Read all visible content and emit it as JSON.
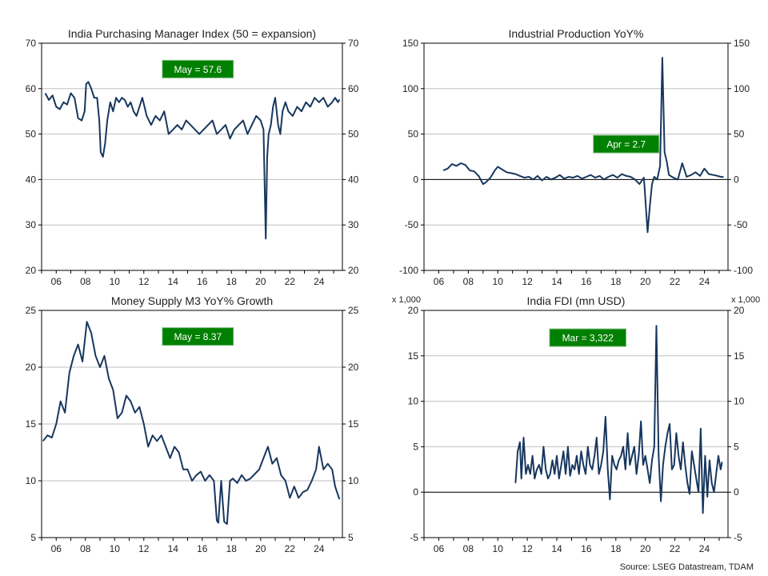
{
  "source": "Source: LSEG Datastream, TDAM",
  "colors": {
    "line": "#17375e",
    "callout_bg": "#008000",
    "callout_text": "#ffffff",
    "grid": "#bfbfbf",
    "axis": "#000000"
  },
  "chart_data": [
    {
      "type": "line",
      "title": "India Purchasing Manager Index (50 = expansion)",
      "ylim": [
        20,
        70
      ],
      "yticks": [
        20,
        30,
        40,
        50,
        60,
        70
      ],
      "ytick_labels": [
        "20",
        "30",
        "40",
        "50",
        "60",
        "70"
      ],
      "xlim": [
        2005,
        2025.6
      ],
      "xticks": [
        2006,
        2008,
        2010,
        2012,
        2014,
        2016,
        2018,
        2020,
        2022,
        2024
      ],
      "xtick_labels": [
        "06",
        "08",
        "10",
        "12",
        "14",
        "16",
        "18",
        "20",
        "22",
        "24"
      ],
      "zero_line": false,
      "multiplier_label": "",
      "grid": true,
      "callout": {
        "text": "May  = 57.6",
        "x": 2015.7,
        "y": 64.3
      },
      "series": [
        {
          "x": [
            2005.25,
            2005.5,
            2005.75,
            2006.0,
            2006.25,
            2006.5,
            2006.75,
            2007.0,
            2007.25,
            2007.5,
            2007.75,
            2007.95,
            2008.05,
            2008.2,
            2008.4,
            2008.6,
            2008.8,
            2008.95,
            2009.05,
            2009.2,
            2009.35,
            2009.5,
            2009.7,
            2009.9,
            2010.1,
            2010.3,
            2010.5,
            2010.7,
            2010.9,
            2011.1,
            2011.3,
            2011.5,
            2011.7,
            2011.9,
            2012.2,
            2012.5,
            2012.8,
            2013.1,
            2013.4,
            2013.7,
            2014.0,
            2014.3,
            2014.6,
            2014.9,
            2015.2,
            2015.5,
            2015.8,
            2016.1,
            2016.4,
            2016.7,
            2017.0,
            2017.3,
            2017.6,
            2017.9,
            2018.2,
            2018.5,
            2018.8,
            2019.1,
            2019.4,
            2019.7,
            2020.0,
            2020.2,
            2020.35,
            2020.45,
            2020.55,
            2020.7,
            2020.85,
            2021.0,
            2021.2,
            2021.35,
            2021.5,
            2021.7,
            2021.9,
            2022.2,
            2022.5,
            2022.8,
            2023.1,
            2023.4,
            2023.7,
            2024.0,
            2024.3,
            2024.6,
            2024.9,
            2025.1,
            2025.3,
            2025.4
          ],
          "values": [
            59,
            57.5,
            58.5,
            56,
            55.5,
            57,
            56.5,
            59,
            58,
            53.5,
            53,
            55,
            61,
            61.5,
            60,
            58,
            58,
            53,
            46,
            45,
            48,
            53,
            57,
            55,
            58,
            57,
            58,
            57.5,
            56,
            57,
            55,
            54,
            56,
            58,
            54,
            52,
            54,
            53,
            55,
            50,
            51,
            52,
            51,
            53,
            52,
            51,
            50,
            51,
            52,
            53,
            50,
            51,
            52,
            49,
            51,
            52,
            53,
            50,
            52,
            54,
            53,
            51,
            27,
            45,
            50,
            52,
            56,
            58,
            52,
            50,
            55,
            57,
            55,
            54,
            56,
            55,
            57,
            56,
            58,
            57,
            58,
            56,
            57,
            58,
            57,
            57.6
          ]
        }
      ]
    },
    {
      "type": "line",
      "title": "Industrial Production YoY%",
      "ylim": [
        -100,
        150
      ],
      "yticks": [
        -100,
        -50,
        0,
        50,
        100,
        150
      ],
      "ytick_labels": [
        "-100",
        "-50",
        "0",
        "50",
        "100",
        "150"
      ],
      "xlim": [
        2005,
        2025.6
      ],
      "xticks": [
        2006,
        2008,
        2010,
        2012,
        2014,
        2016,
        2018,
        2020,
        2022,
        2024
      ],
      "xtick_labels": [
        "06",
        "08",
        "10",
        "12",
        "14",
        "16",
        "18",
        "20",
        "22",
        "24"
      ],
      "zero_line": true,
      "multiplier_label": "",
      "grid": true,
      "callout": {
        "text": "Apr  = 2.7",
        "x": 2018.7,
        "y": 39
      },
      "series": [
        {
          "x": [
            2006.3,
            2006.6,
            2006.9,
            2007.2,
            2007.5,
            2007.8,
            2008.1,
            2008.4,
            2008.7,
            2009.0,
            2009.2,
            2009.5,
            2009.8,
            2010.0,
            2010.3,
            2010.6,
            2010.9,
            2011.2,
            2011.5,
            2011.8,
            2012.1,
            2012.4,
            2012.7,
            2013.0,
            2013.3,
            2013.6,
            2013.9,
            2014.2,
            2014.5,
            2014.8,
            2015.1,
            2015.4,
            2015.7,
            2016.0,
            2016.3,
            2016.6,
            2016.9,
            2017.2,
            2017.5,
            2017.8,
            2018.1,
            2018.4,
            2018.7,
            2019.0,
            2019.3,
            2019.6,
            2019.9,
            2020.15,
            2020.3,
            2020.45,
            2020.6,
            2020.8,
            2021.0,
            2021.15,
            2021.3,
            2021.45,
            2021.6,
            2021.9,
            2022.2,
            2022.5,
            2022.8,
            2023.1,
            2023.4,
            2023.7,
            2024.0,
            2024.3,
            2024.6,
            2024.9,
            2025.1,
            2025.3
          ],
          "values": [
            10,
            12,
            17,
            15,
            18,
            16,
            10,
            9,
            4,
            -5,
            -3,
            2,
            10,
            14,
            11,
            8,
            7,
            6,
            4,
            2,
            3,
            0,
            4,
            -1,
            3,
            0,
            2,
            5,
            1,
            3,
            2,
            4,
            1,
            3,
            5,
            2,
            4,
            0,
            3,
            5,
            2,
            6,
            4,
            3,
            0,
            -5,
            2,
            -58,
            -30,
            -5,
            3,
            0,
            15,
            134,
            30,
            20,
            5,
            2,
            0,
            18,
            3,
            5,
            8,
            4,
            12,
            6,
            5,
            4,
            3,
            2.7
          ]
        }
      ]
    },
    {
      "type": "line",
      "title": "Money Supply M3 YoY% Growth",
      "ylim": [
        5,
        25
      ],
      "yticks": [
        5,
        10,
        15,
        20,
        25
      ],
      "ytick_labels": [
        "5",
        "10",
        "15",
        "20",
        "25"
      ],
      "xlim": [
        2005,
        2025.6
      ],
      "xticks": [
        2006,
        2008,
        2010,
        2012,
        2014,
        2016,
        2018,
        2020,
        2022,
        2024
      ],
      "xtick_labels": [
        "06",
        "08",
        "10",
        "12",
        "14",
        "16",
        "18",
        "20",
        "22",
        "24"
      ],
      "zero_line": false,
      "multiplier_label": "",
      "grid": true,
      "callout": {
        "text": "May  = 8.37",
        "x": 2015.7,
        "y": 22.7
      },
      "series": [
        {
          "x": [
            2005.1,
            2005.4,
            2005.7,
            2006.0,
            2006.3,
            2006.6,
            2006.9,
            2007.2,
            2007.5,
            2007.8,
            2008.1,
            2008.4,
            2008.7,
            2009.0,
            2009.3,
            2009.6,
            2009.9,
            2010.2,
            2010.5,
            2010.8,
            2011.1,
            2011.4,
            2011.7,
            2012.0,
            2012.3,
            2012.6,
            2012.9,
            2013.2,
            2013.5,
            2013.8,
            2014.1,
            2014.4,
            2014.7,
            2015.0,
            2015.3,
            2015.6,
            2015.9,
            2016.2,
            2016.5,
            2016.8,
            2017.0,
            2017.1,
            2017.3,
            2017.5,
            2017.7,
            2017.9,
            2018.1,
            2018.4,
            2018.7,
            2019.0,
            2019.3,
            2019.6,
            2019.9,
            2020.2,
            2020.5,
            2020.8,
            2021.1,
            2021.4,
            2021.7,
            2022.0,
            2022.3,
            2022.6,
            2022.9,
            2023.2,
            2023.5,
            2023.8,
            2024.0,
            2024.3,
            2024.6,
            2024.9,
            2025.1,
            2025.4
          ],
          "values": [
            13.5,
            14,
            13.8,
            15,
            17,
            16,
            19.5,
            21,
            22,
            20.5,
            24,
            23,
            21,
            20,
            21,
            19,
            18,
            15.5,
            16,
            17.5,
            17,
            16,
            16.5,
            15,
            13,
            14,
            13.5,
            14,
            13,
            12,
            13,
            12.5,
            11,
            11,
            10,
            10.5,
            10.8,
            10,
            10.5,
            10,
            6.5,
            6.3,
            10,
            6.4,
            6.2,
            10,
            10.2,
            9.8,
            10.5,
            10,
            10.2,
            10.6,
            11,
            12,
            13,
            11.5,
            12,
            10.5,
            10,
            8.5,
            9.5,
            8.5,
            9,
            9.2,
            10,
            11,
            13,
            11,
            11.5,
            11,
            9.5,
            8.37
          ]
        }
      ]
    },
    {
      "type": "line",
      "title": "India FDI (mn USD)",
      "ylim": [
        -5,
        20
      ],
      "yticks": [
        -5,
        0,
        5,
        10,
        15,
        20
      ],
      "ytick_labels": [
        "-5",
        "0",
        "5",
        "10",
        "15",
        "20"
      ],
      "xlim": [
        2005,
        2025.6
      ],
      "xticks": [
        2006,
        2008,
        2010,
        2012,
        2014,
        2016,
        2018,
        2020,
        2022,
        2024
      ],
      "xtick_labels": [
        "06",
        "08",
        "10",
        "12",
        "14",
        "16",
        "18",
        "20",
        "22",
        "24"
      ],
      "zero_line": true,
      "multiplier_label": "x 1,000",
      "grid": true,
      "callout": {
        "text": "Mar  = 3,322",
        "x": 2016.1,
        "y": 17
      },
      "series": [
        {
          "x": [
            2011.2,
            2011.35,
            2011.5,
            2011.6,
            2011.75,
            2011.9,
            2012.05,
            2012.2,
            2012.35,
            2012.5,
            2012.65,
            2012.8,
            2012.95,
            2013.1,
            2013.25,
            2013.4,
            2013.55,
            2013.7,
            2013.85,
            2014.0,
            2014.15,
            2014.3,
            2014.45,
            2014.6,
            2014.75,
            2014.9,
            2015.05,
            2015.2,
            2015.35,
            2015.5,
            2015.65,
            2015.8,
            2015.95,
            2016.1,
            2016.25,
            2016.4,
            2016.55,
            2016.7,
            2016.85,
            2017.0,
            2017.15,
            2017.3,
            2017.45,
            2017.6,
            2017.75,
            2017.9,
            2018.05,
            2018.2,
            2018.35,
            2018.5,
            2018.65,
            2018.8,
            2018.95,
            2019.1,
            2019.25,
            2019.4,
            2019.55,
            2019.7,
            2019.85,
            2020.0,
            2020.15,
            2020.3,
            2020.45,
            2020.6,
            2020.75,
            2020.9,
            2021.05,
            2021.2,
            2021.35,
            2021.5,
            2021.65,
            2021.8,
            2021.95,
            2022.1,
            2022.25,
            2022.4,
            2022.55,
            2022.7,
            2022.85,
            2023.0,
            2023.15,
            2023.3,
            2023.45,
            2023.6,
            2023.75,
            2023.9,
            2024.05,
            2024.2,
            2024.35,
            2024.5,
            2024.65,
            2024.8,
            2024.95,
            2025.1,
            2025.2
          ],
          "values": [
            1,
            4.5,
            5.5,
            1.5,
            6,
            2,
            3,
            2,
            4,
            1.5,
            2.5,
            3,
            2,
            5,
            2.5,
            1.5,
            2,
            3.5,
            2,
            4,
            1.5,
            3,
            4.5,
            2,
            5,
            1.8,
            3,
            2.5,
            4,
            2,
            4.5,
            3,
            2,
            5,
            3,
            2.5,
            4,
            6,
            2,
            3,
            4.5,
            8.3,
            2.5,
            -0.8,
            4,
            3,
            2.5,
            3.5,
            4,
            5,
            2.5,
            6.5,
            3,
            4,
            5,
            2,
            4,
            7.8,
            3,
            4,
            2.5,
            1,
            3.5,
            5,
            18.3,
            4,
            -1,
            3,
            5,
            6.5,
            7.5,
            2.5,
            3,
            6.5,
            4,
            2.5,
            5.5,
            3,
            1,
            -0.2,
            4.5,
            3,
            1.5,
            0,
            7,
            -2.3,
            4,
            -0.5,
            3.5,
            1,
            0,
            2,
            4,
            2.5,
            3.322
          ]
        }
      ]
    }
  ]
}
